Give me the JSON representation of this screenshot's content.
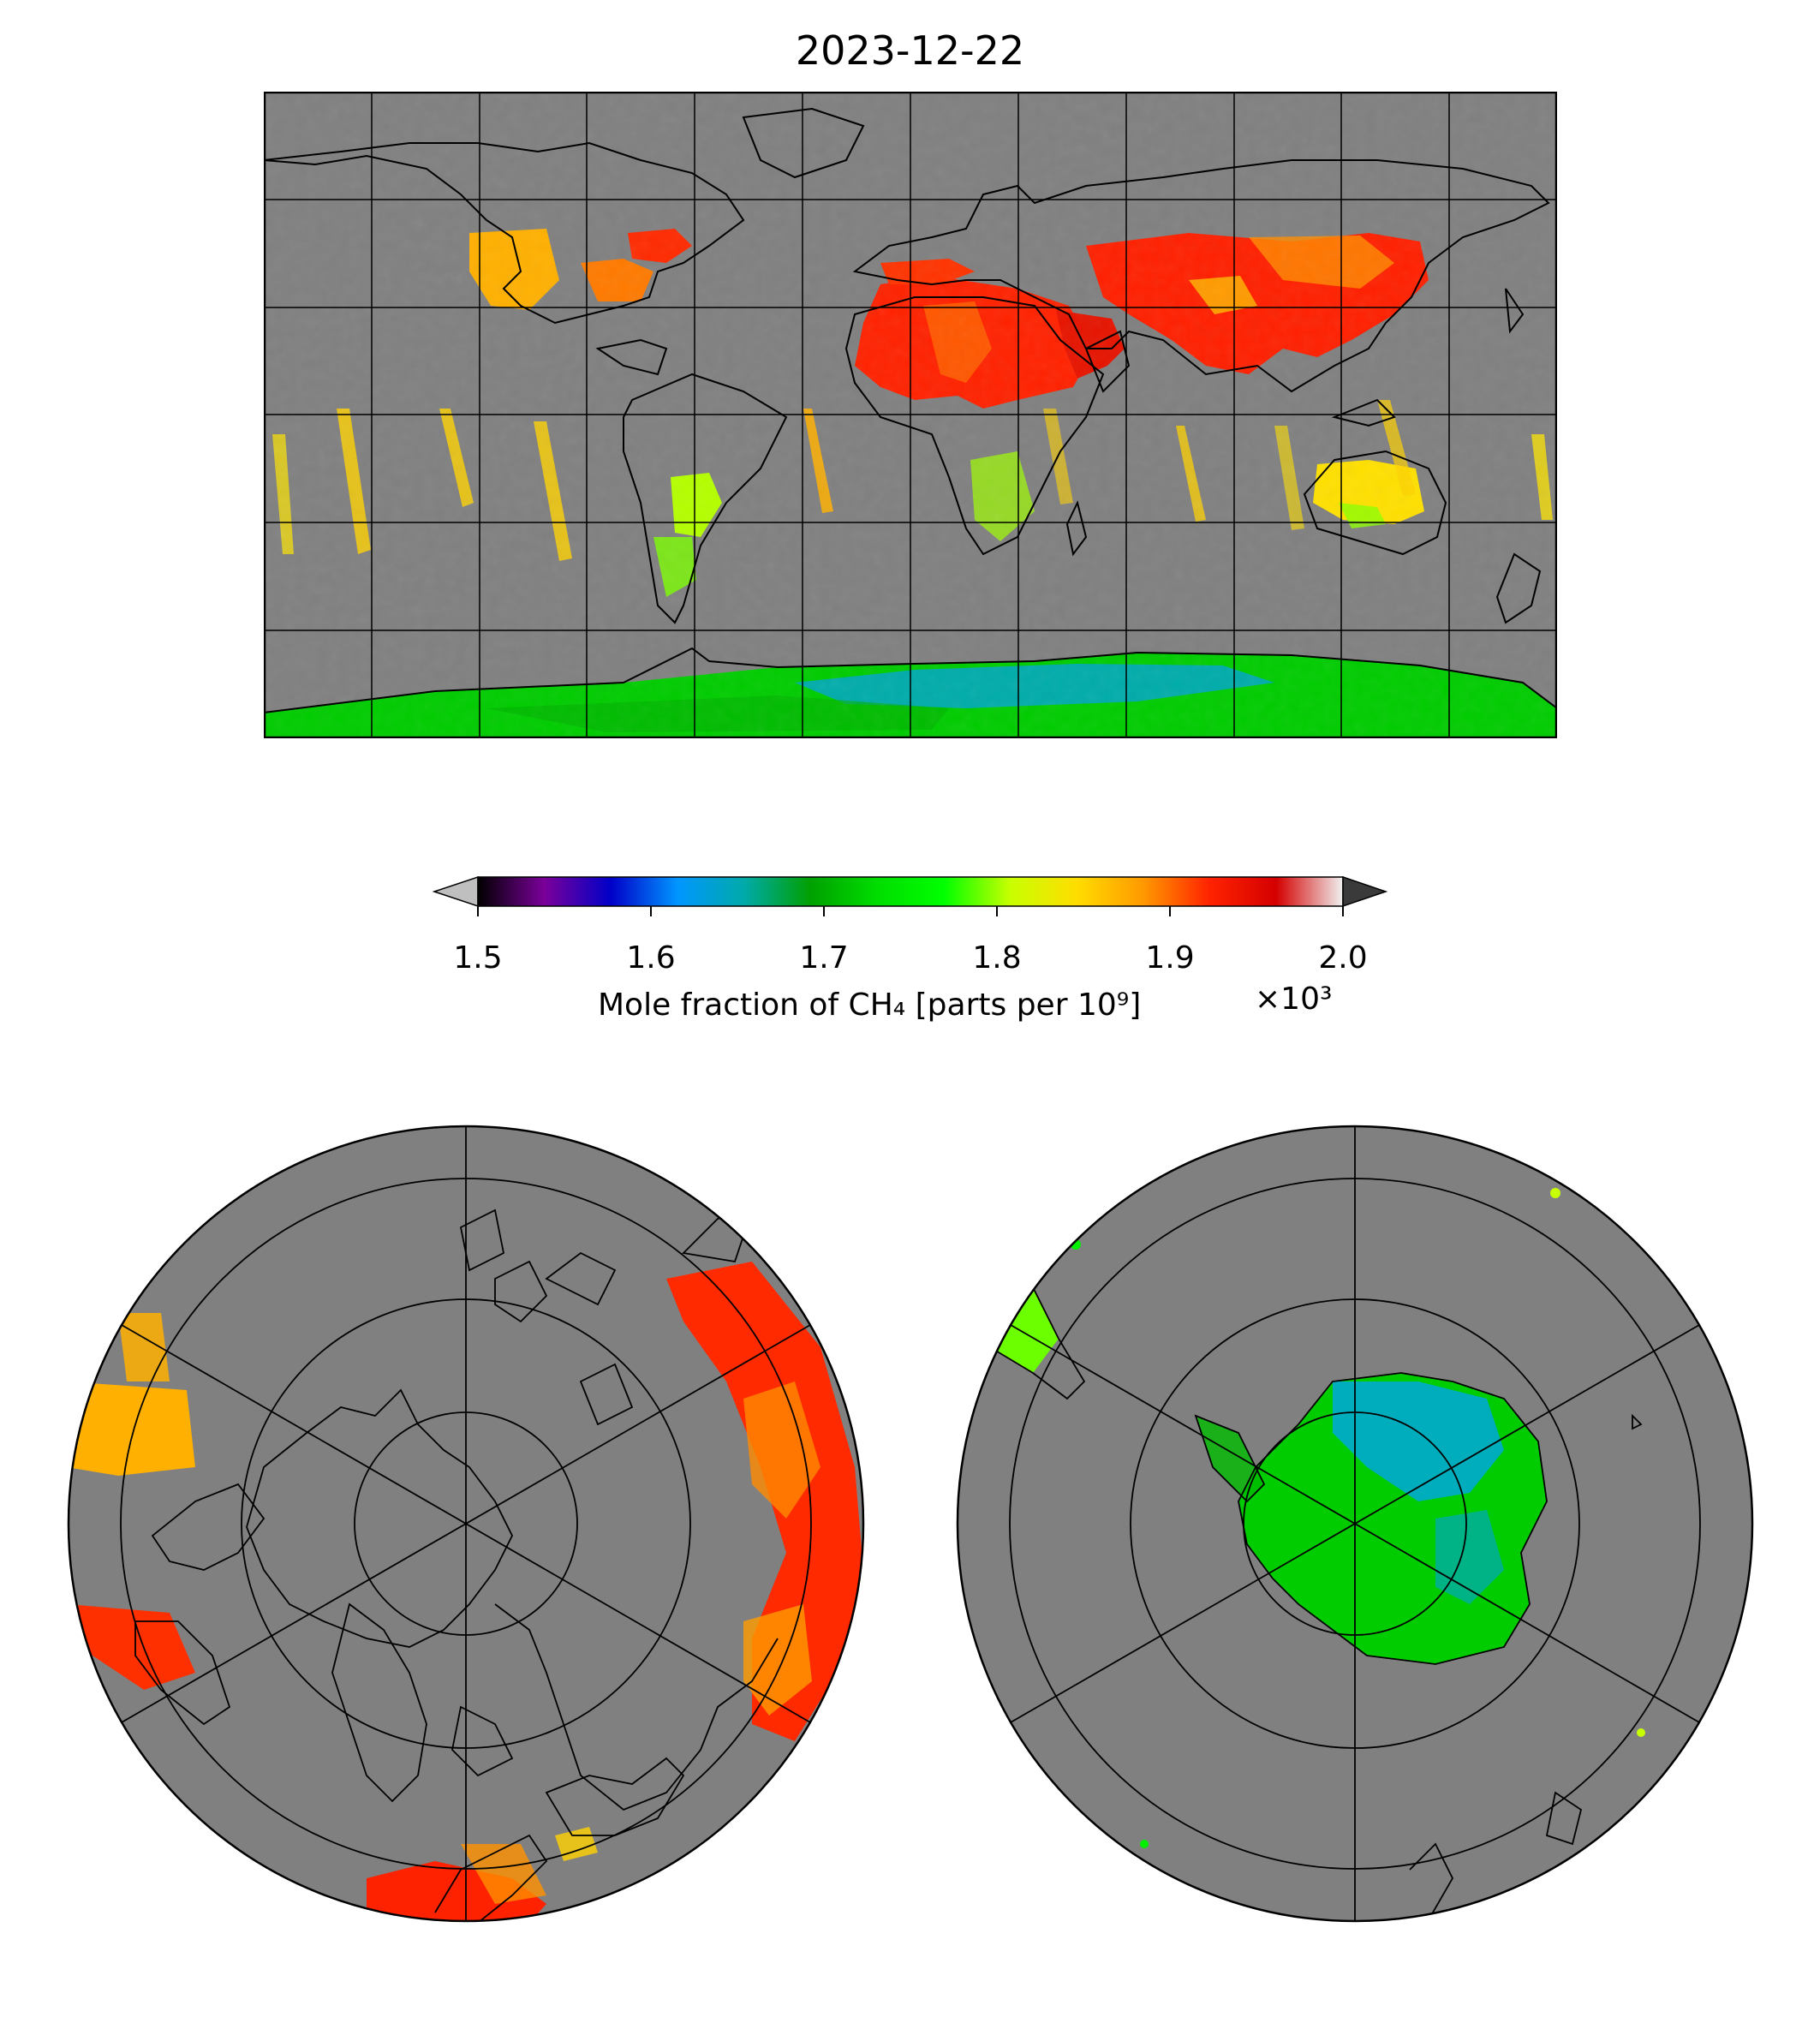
{
  "title": "2023-12-22",
  "colorbar": {
    "label": "Mole fraction of CH₄ [parts per 10⁹]",
    "multiplier": "×10³",
    "ticks": [
      "1.5",
      "1.6",
      "1.7",
      "1.8",
      "1.9",
      "2.0"
    ],
    "range": [
      1.5,
      2.0
    ],
    "extend": "both",
    "stops": [
      "#000000",
      "#7a0099",
      "#0000c8",
      "#0096ff",
      "#00aaaa",
      "#00a000",
      "#00dd00",
      "#00ff00",
      "#c8ff00",
      "#ffdd00",
      "#ff9900",
      "#ff2200",
      "#d40000",
      "#f0f0f0"
    ],
    "under_color": "#bfbfbf",
    "over_color": "#3a3a3a"
  },
  "colors": {
    "no_data": "#808080",
    "coastline": "#000000"
  },
  "maps": {
    "world": {
      "projection": "plate-carree",
      "gridlines": true
    },
    "north_polar": {
      "projection": "north-polar-stereographic",
      "gridlines": true
    },
    "south_polar": {
      "projection": "south-polar-stereographic",
      "gridlines": true
    }
  }
}
